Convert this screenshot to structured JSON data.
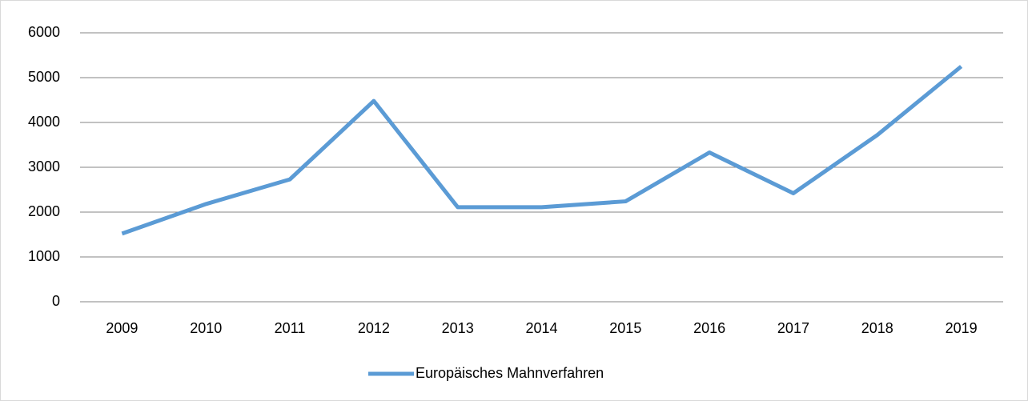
{
  "chart_data": {
    "type": "line",
    "categories": [
      "2009",
      "2010",
      "2011",
      "2012",
      "2013",
      "2014",
      "2015",
      "2016",
      "2017",
      "2018",
      "2019"
    ],
    "series": [
      {
        "name": "Europäisches Mahnverfahren",
        "color": "#5b9bd5",
        "values": [
          1520,
          2180,
          2730,
          4480,
          2110,
          2110,
          2240,
          3330,
          2420,
          3720,
          5250
        ]
      }
    ],
    "ylim": [
      0,
      6000
    ],
    "yticks": [
      0,
      1000,
      2000,
      3000,
      4000,
      5000,
      6000
    ],
    "grid": true,
    "legend": "bottom"
  }
}
